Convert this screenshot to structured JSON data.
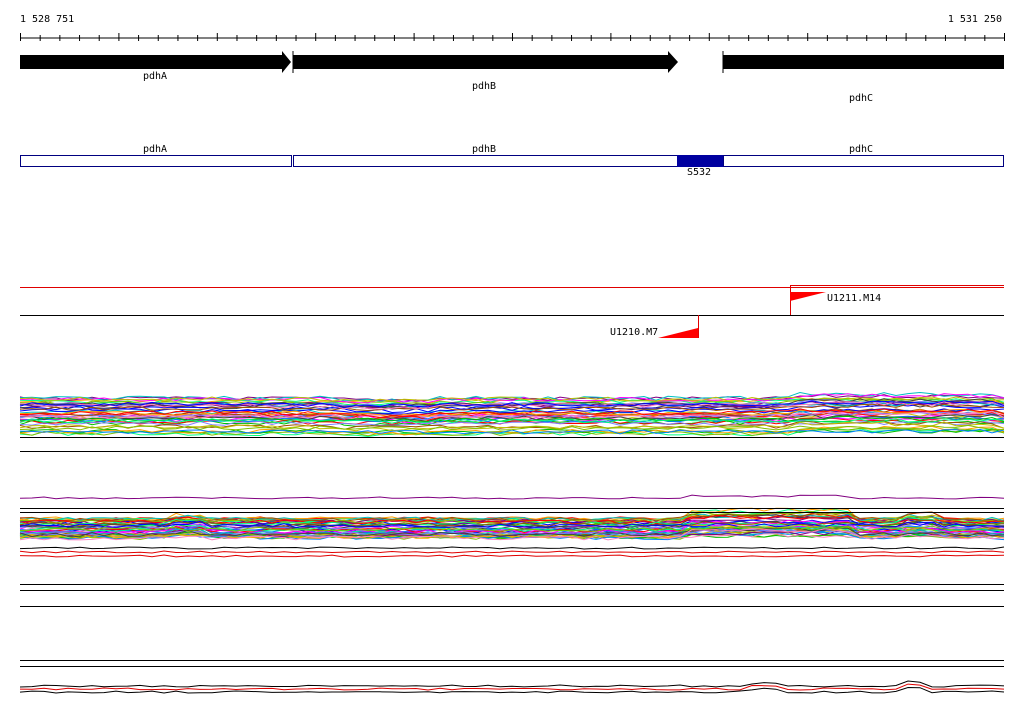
{
  "ruler": {
    "start_label": "1 528 751",
    "end_label": "1 531 250"
  },
  "genes": [
    {
      "label": "pdhA"
    },
    {
      "label": "pdhB"
    },
    {
      "label": "pdhC"
    }
  ],
  "operon_regions": [
    {
      "label": "pdhA"
    },
    {
      "label": "pdhB"
    },
    {
      "label": "pdhC"
    }
  ],
  "site": {
    "label": "S532"
  },
  "terminators": [
    {
      "label": "U1211.M14"
    },
    {
      "label": "U1210.M7"
    }
  ]
}
